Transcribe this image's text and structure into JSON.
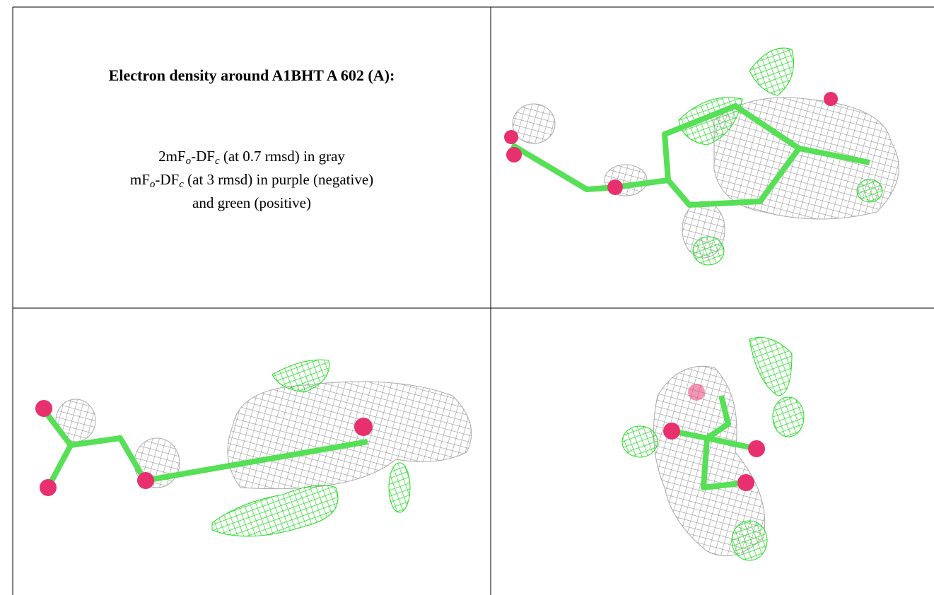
{
  "header": {
    "title": "Electron density around A1BHT A 602 (A):"
  },
  "legend": {
    "lines": [
      {
        "parts": [
          "2mF",
          "o",
          "-DF",
          "c",
          " (at 0.7 rmsd) in gray"
        ]
      },
      {
        "parts": [
          "mF",
          "o",
          "-DF",
          "c",
          " (at 3 rmsd) in purple (negative)"
        ]
      },
      {
        "parts": [
          "and green (positive)"
        ]
      }
    ]
  }
}
